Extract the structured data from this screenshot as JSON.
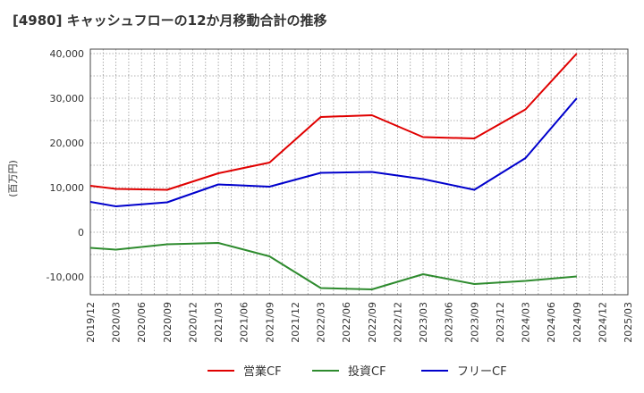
{
  "chart_data": {
    "type": "line",
    "title": "[4980]  キャッシュフローの12か月移動合計の推移",
    "ylabel": "(百万円)",
    "xlabel": "",
    "ylim": [
      -14000,
      41000
    ],
    "yticks": [
      40000,
      30000,
      20000,
      10000,
      0,
      -10000
    ],
    "ytick_labels": [
      "40,000",
      "30,000",
      "20,000",
      "10,000",
      "0",
      "-10,000"
    ],
    "x_labels": [
      "2019/12",
      "2020/03",
      "2020/06",
      "2020/09",
      "2020/12",
      "2021/03",
      "2021/06",
      "2021/09",
      "2021/12",
      "2022/03",
      "2022/06",
      "2022/09",
      "2022/12",
      "2023/03",
      "2023/06",
      "2023/09",
      "2023/12",
      "2024/03",
      "2024/06",
      "2024/09",
      "2024/12",
      "2025/03"
    ],
    "grid": true,
    "legend_position": "bottom",
    "series": [
      {
        "name": "営業CF",
        "color": "#e00000",
        "x": [
          "2019/12",
          "2020/03",
          "2020/09",
          "2021/03",
          "2021/09",
          "2022/03",
          "2022/09",
          "2023/03",
          "2023/09",
          "2024/03",
          "2024/09"
        ],
        "values": [
          10400,
          9700,
          9500,
          13200,
          15600,
          25800,
          26200,
          21300,
          21000,
          27500,
          40000
        ]
      },
      {
        "name": "投資CF",
        "color": "#2e8b2e",
        "x": [
          "2019/12",
          "2020/03",
          "2020/09",
          "2021/03",
          "2021/09",
          "2022/03",
          "2022/09",
          "2023/03",
          "2023/09",
          "2024/03",
          "2024/09"
        ],
        "values": [
          -3500,
          -3900,
          -2700,
          -2400,
          -5400,
          -12500,
          -12800,
          -9400,
          -11600,
          -10900,
          -9900
        ]
      },
      {
        "name": "フリーCF",
        "color": "#0000cc",
        "x": [
          "2019/12",
          "2020/03",
          "2020/09",
          "2021/03",
          "2021/09",
          "2022/03",
          "2022/09",
          "2023/03",
          "2023/09",
          "2024/03",
          "2024/09"
        ],
        "values": [
          6800,
          5800,
          6700,
          10700,
          10200,
          13300,
          13500,
          11900,
          9500,
          16600,
          30000
        ]
      }
    ]
  }
}
